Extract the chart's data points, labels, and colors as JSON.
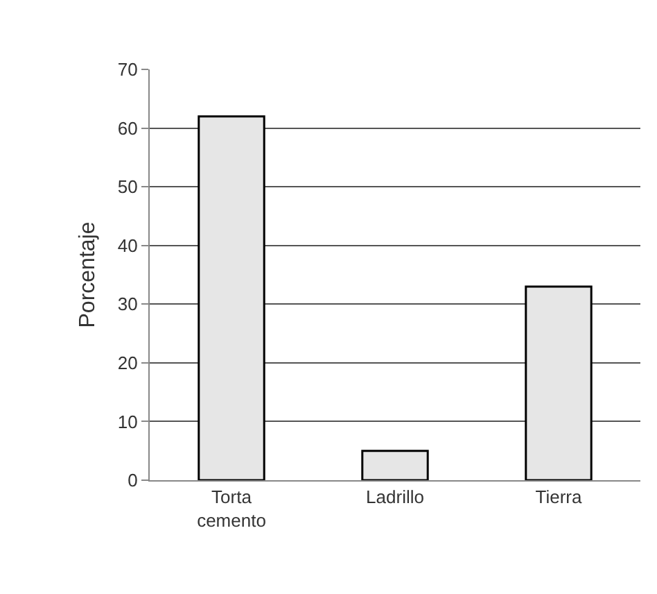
{
  "chart_data": {
    "type": "bar",
    "ylabel": "Porcentaje",
    "categories": [
      "Torta cemento",
      "Ladrillo",
      "Tierra"
    ],
    "values": [
      62,
      5,
      33
    ],
    "color": "#e6e6e6",
    "ylim": [
      0,
      70
    ],
    "yticks": [
      0,
      10,
      20,
      30,
      40,
      50,
      60,
      70
    ],
    "grid": "y"
  }
}
